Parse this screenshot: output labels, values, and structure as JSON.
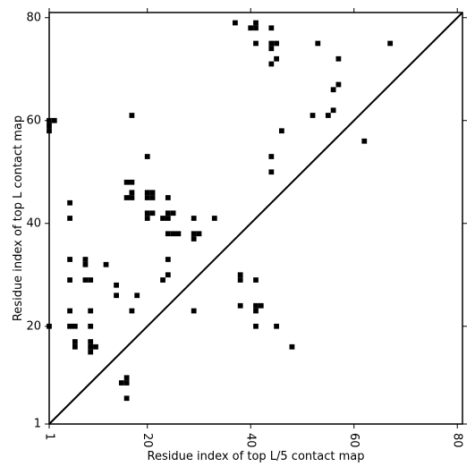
{
  "chart_data": {
    "type": "scatter",
    "marker": "square",
    "xlabel": "Residue index of top L/5 contact map",
    "ylabel": "Residue index of top L contact map",
    "xlim": [
      1,
      81
    ],
    "ylim": [
      1,
      81
    ],
    "grid": false,
    "diagonal_line": true,
    "color": "#000000",
    "x_ticks": [
      1,
      20,
      40,
      60,
      80
    ],
    "y_ticks": [
      1,
      20,
      40,
      60,
      80
    ],
    "x_tick_labels": [
      "1",
      "20",
      "40",
      "60",
      "80"
    ],
    "y_tick_labels": [
      "1",
      "20",
      "40",
      "60",
      "80"
    ],
    "x_tick_rotation": -90,
    "points": [
      [
        1,
        20
      ],
      [
        1,
        58
      ],
      [
        1,
        59
      ],
      [
        1,
        60
      ],
      [
        2,
        60
      ],
      [
        5,
        44
      ],
      [
        5,
        41
      ],
      [
        5,
        33
      ],
      [
        5,
        29
      ],
      [
        5,
        23
      ],
      [
        5,
        20
      ],
      [
        6,
        20
      ],
      [
        6,
        17
      ],
      [
        6,
        16
      ],
      [
        8,
        33
      ],
      [
        8,
        32
      ],
      [
        8,
        29
      ],
      [
        9,
        29
      ],
      [
        9,
        23
      ],
      [
        9,
        20
      ],
      [
        9,
        17
      ],
      [
        9,
        16
      ],
      [
        9,
        15
      ],
      [
        10,
        16
      ],
      [
        12,
        32
      ],
      [
        14,
        28
      ],
      [
        14,
        26
      ],
      [
        15,
        9
      ],
      [
        16,
        48
      ],
      [
        16,
        45
      ],
      [
        16,
        10
      ],
      [
        16,
        9
      ],
      [
        16,
        6
      ],
      [
        17,
        61
      ],
      [
        17,
        48
      ],
      [
        17,
        46
      ],
      [
        17,
        45
      ],
      [
        17,
        23
      ],
      [
        18,
        26
      ],
      [
        20,
        53
      ],
      [
        20,
        46
      ],
      [
        20,
        45
      ],
      [
        20,
        42
      ],
      [
        20,
        41
      ],
      [
        21,
        46
      ],
      [
        21,
        45
      ],
      [
        21,
        42
      ],
      [
        23,
        41
      ],
      [
        23,
        29
      ],
      [
        24,
        45
      ],
      [
        24,
        42
      ],
      [
        24,
        41
      ],
      [
        24,
        38
      ],
      [
        24,
        33
      ],
      [
        24,
        30
      ],
      [
        25,
        42
      ],
      [
        25,
        38
      ],
      [
        26,
        38
      ],
      [
        29,
        41
      ],
      [
        29,
        38
      ],
      [
        29,
        37
      ],
      [
        29,
        23
      ],
      [
        30,
        38
      ],
      [
        33,
        41
      ],
      [
        37,
        79
      ],
      [
        38,
        30
      ],
      [
        38,
        29
      ],
      [
        38,
        24
      ],
      [
        40,
        78
      ],
      [
        41,
        79
      ],
      [
        41,
        78
      ],
      [
        41,
        75
      ],
      [
        41,
        29
      ],
      [
        41,
        24
      ],
      [
        41,
        23
      ],
      [
        41,
        20
      ],
      [
        42,
        24
      ],
      [
        44,
        78
      ],
      [
        44,
        75
      ],
      [
        44,
        74
      ],
      [
        44,
        71
      ],
      [
        44,
        53
      ],
      [
        44,
        50
      ],
      [
        45,
        75
      ],
      [
        45,
        72
      ],
      [
        45,
        20
      ],
      [
        46,
        58
      ],
      [
        48,
        16
      ],
      [
        52,
        61
      ],
      [
        53,
        75
      ],
      [
        55,
        61
      ],
      [
        56,
        66
      ],
      [
        56,
        62
      ],
      [
        57,
        72
      ],
      [
        57,
        67
      ],
      [
        62,
        56
      ],
      [
        67,
        75
      ]
    ]
  }
}
